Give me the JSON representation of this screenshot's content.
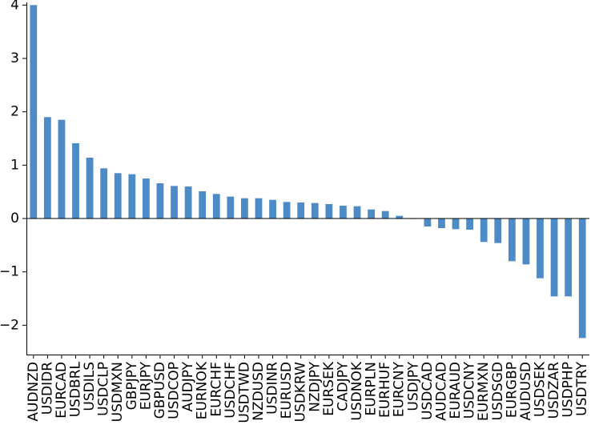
{
  "chart_data": {
    "type": "bar",
    "title": "",
    "xlabel": "",
    "ylabel": "",
    "ylim": [
      -2.55,
      4.05
    ],
    "yticks": [
      4,
      3,
      2,
      1,
      0,
      -1,
      -2
    ],
    "ytick_labels": [
      "4",
      "3",
      "2",
      "1",
      "0",
      "−1",
      "−2"
    ],
    "grid": false,
    "legend": "none",
    "bar_color": "#4c8bc6",
    "zero_line": true,
    "categories": [
      "AUDNZD",
      "USDIDR",
      "EURCAD",
      "USDBRL",
      "USDILS",
      "USDCLP",
      "USDMXN",
      "GBPJPY",
      "EURJPY",
      "GBPUSD",
      "USDCOP",
      "AUDJPY",
      "EURNOK",
      "EURCHF",
      "USDCHF",
      "USDTWD",
      "NZDUSD",
      "USDINR",
      "EURUSD",
      "USDKRW",
      "NZDJPY",
      "EURSEK",
      "CADJPY",
      "USDNOK",
      "EURPLN",
      "EURHUF",
      "EURCNY",
      "USDJPY",
      "USDCAD",
      "AUDCAD",
      "EURAUD",
      "USDCNY",
      "EURMXN",
      "USDSGD",
      "EURGBP",
      "AUDUSD",
      "USDSEK",
      "USDZAR",
      "USDPHP",
      "USDTRY"
    ],
    "values": [
      4.0,
      1.9,
      1.85,
      1.41,
      1.14,
      0.94,
      0.85,
      0.83,
      0.75,
      0.66,
      0.61,
      0.6,
      0.51,
      0.46,
      0.41,
      0.38,
      0.38,
      0.35,
      0.31,
      0.3,
      0.29,
      0.27,
      0.24,
      0.23,
      0.17,
      0.14,
      0.05,
      -0.01,
      -0.15,
      -0.18,
      -0.2,
      -0.21,
      -0.44,
      -0.46,
      -0.8,
      -0.86,
      -1.12,
      -1.46,
      -1.46,
      -2.24
    ]
  }
}
